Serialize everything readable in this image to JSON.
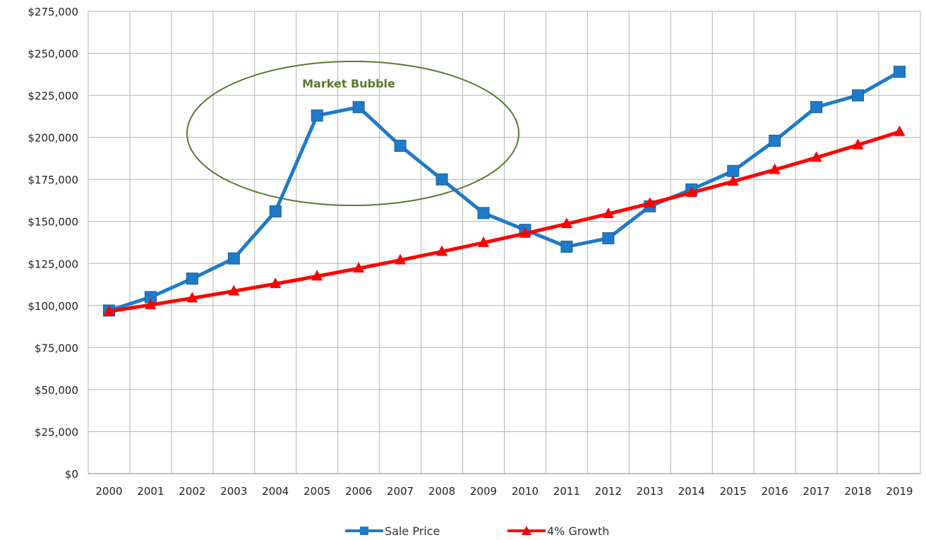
{
  "chart_data": {
    "type": "line",
    "title": "",
    "xlabel": "",
    "ylabel": "",
    "categories": [
      "2000",
      "2001",
      "2002",
      "2003",
      "2004",
      "2005",
      "2006",
      "2007",
      "2008",
      "2009",
      "2010",
      "2011",
      "2012",
      "2013",
      "2014",
      "2015",
      "2016",
      "2017",
      "2018",
      "2019"
    ],
    "ylim": [
      0,
      275000
    ],
    "y_ticks": [
      0,
      25000,
      50000,
      75000,
      100000,
      125000,
      150000,
      175000,
      200000,
      225000,
      250000,
      275000
    ],
    "y_tick_labels": [
      "$0",
      "$25,000",
      "$50,000",
      "$75,000",
      "$100,000",
      "$125,000",
      "$150,000",
      "$175,000",
      "$200,000",
      "$225,000",
      "$250,000",
      "$275,000"
    ],
    "grid": true,
    "legend_position": "bottom",
    "series": [
      {
        "name": "Sale Price",
        "color": "#1f7bc8",
        "marker": "square",
        "values": [
          97000,
          105000,
          116000,
          128000,
          156000,
          213000,
          218000,
          195000,
          175000,
          155000,
          145000,
          135000,
          140000,
          159000,
          169000,
          180000,
          198000,
          218000,
          225000,
          239000
        ]
      },
      {
        "name": "4% Growth",
        "color": "#ff0000",
        "marker": "triangle",
        "values": [
          96500,
          100360,
          104374,
          108549,
          112891,
          117407,
          122103,
          126987,
          132067,
          137349,
          142843,
          148557,
          154499,
          160679,
          167107,
          173791,
          180743,
          187972,
          195491,
          203311
        ]
      }
    ],
    "annotations": [
      {
        "text": "Market Bubble",
        "shape": "ellipse",
        "color": "#5a7a2e"
      }
    ]
  }
}
